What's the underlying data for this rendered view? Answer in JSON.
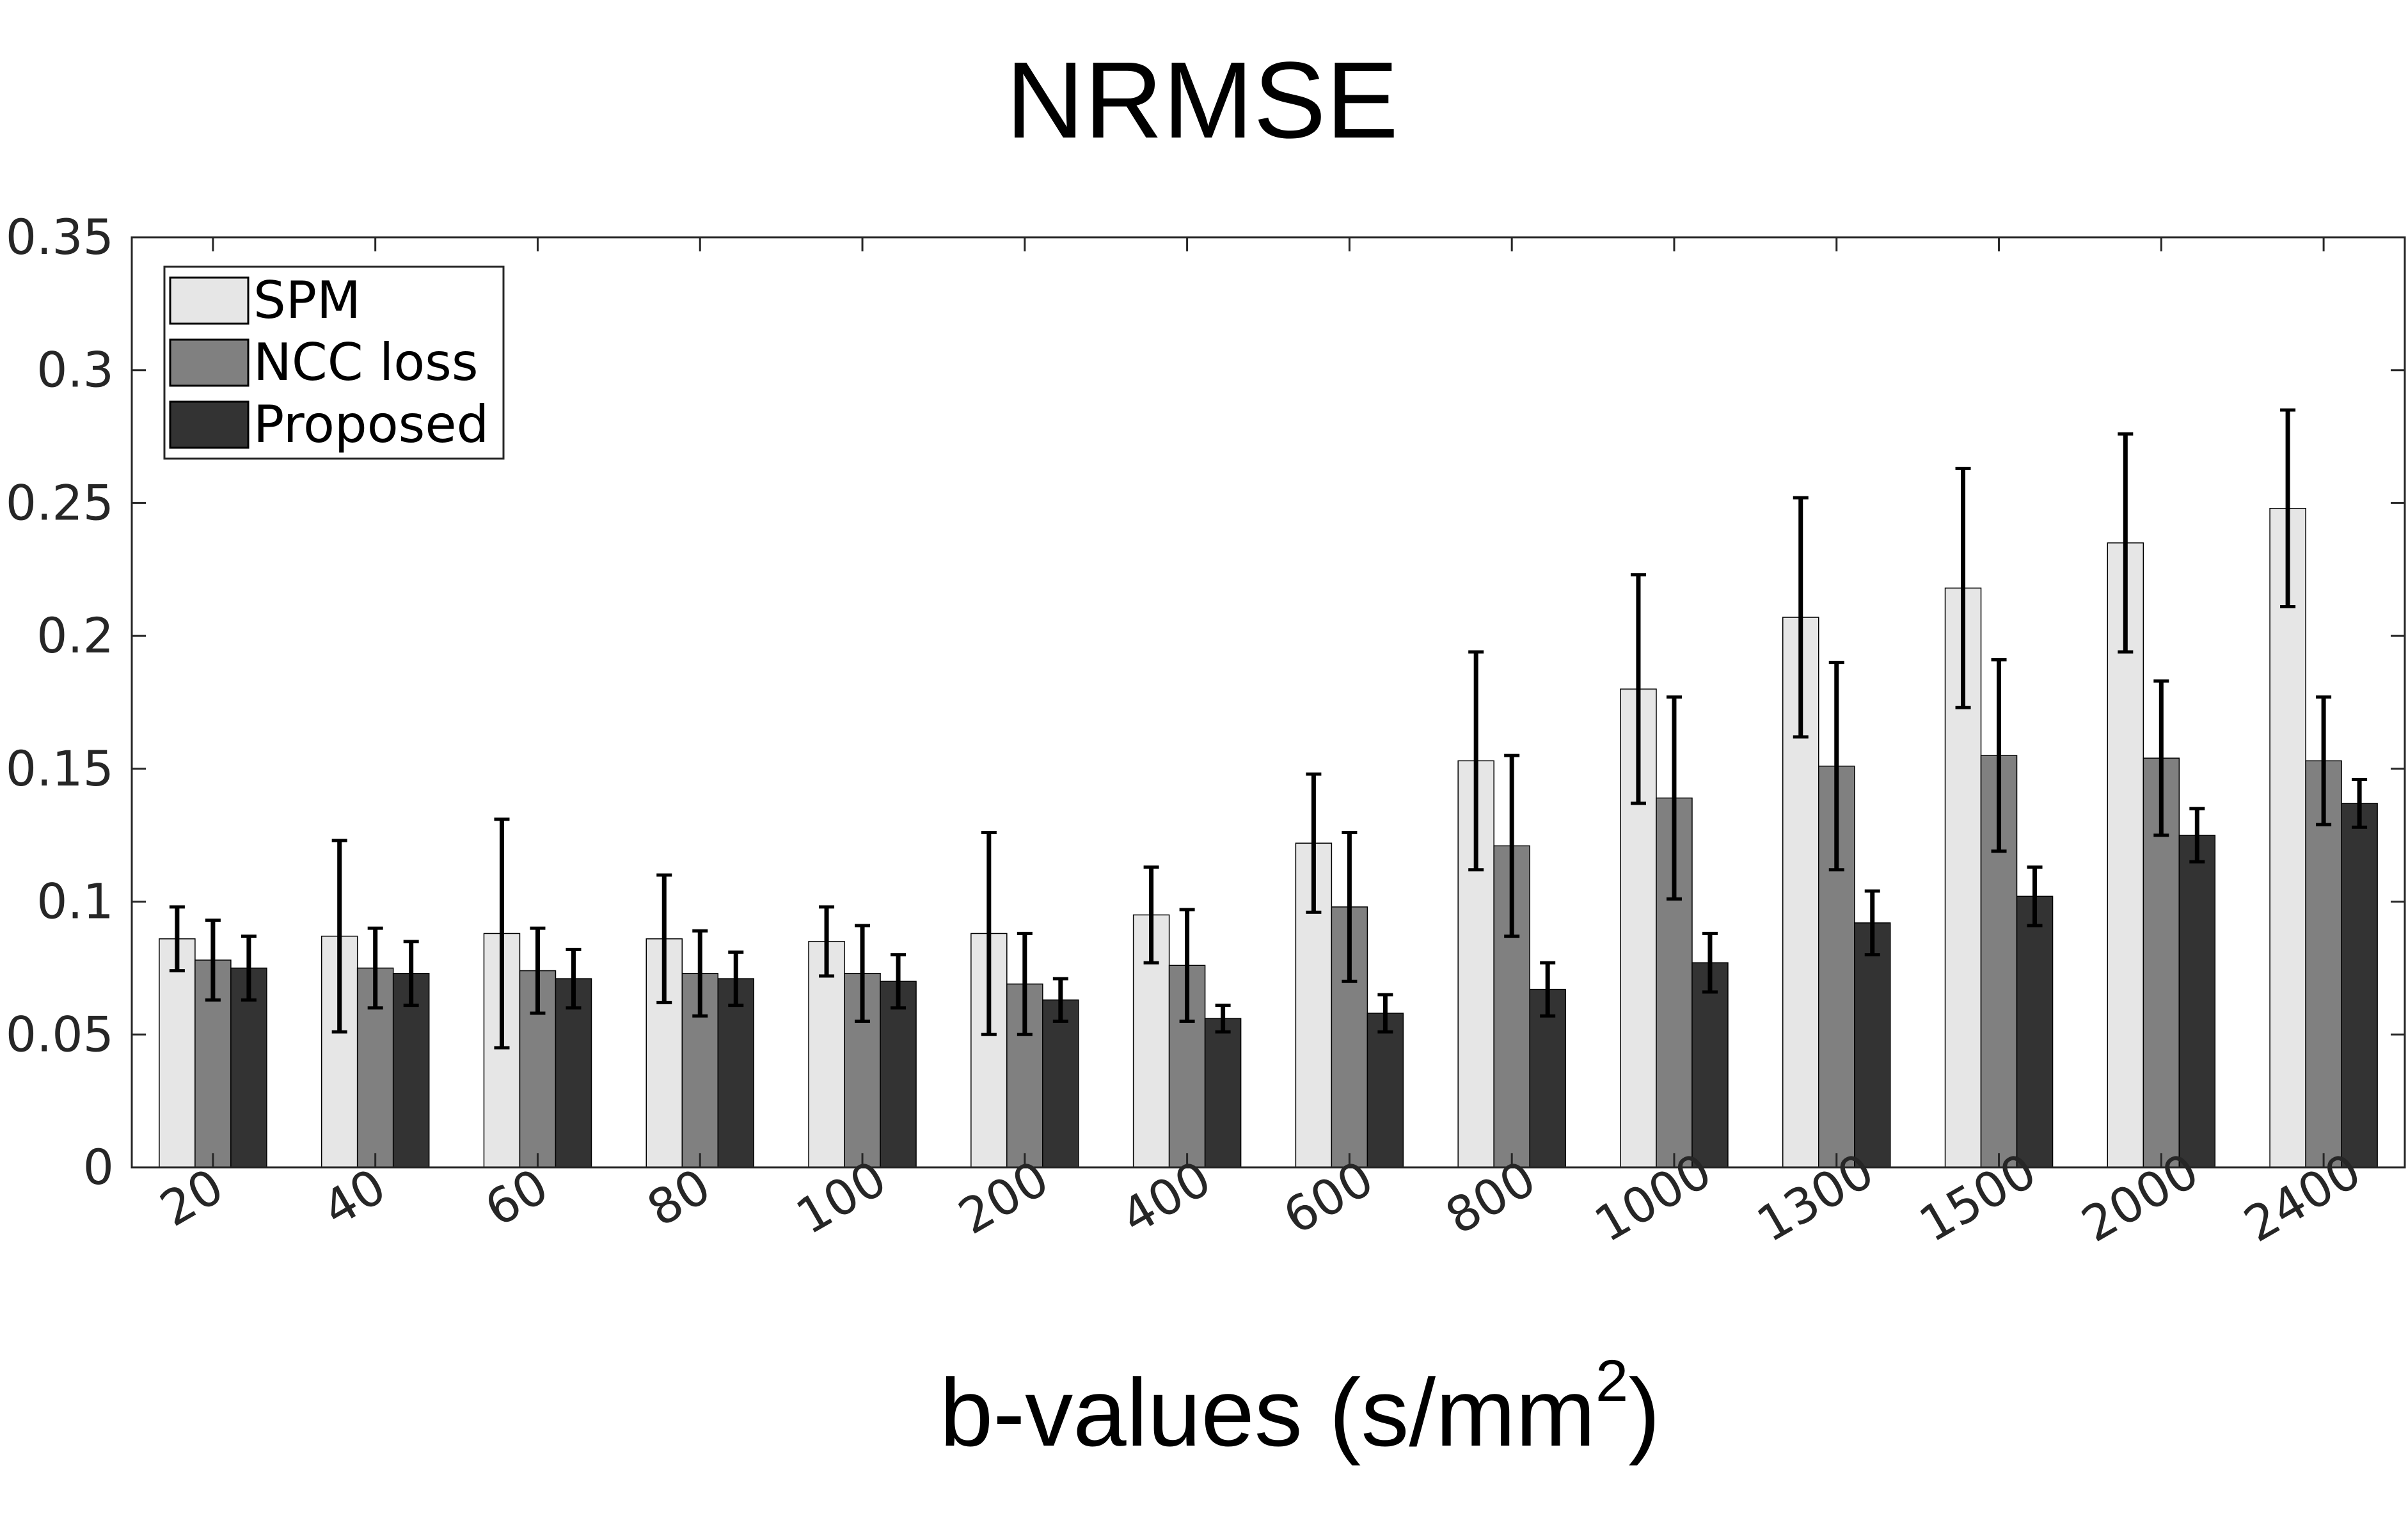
{
  "chart_data": {
    "type": "bar",
    "title": "NRMSE",
    "xlabel": "b-values (s/mm",
    "xlabel_superscript": "2",
    "xlabel_suffix": ")",
    "ylabel": "",
    "ylim": [
      0,
      0.35
    ],
    "yticks": [
      0,
      0.05,
      0.1,
      0.15,
      0.2,
      0.25,
      0.3,
      0.35
    ],
    "ytick_labels": [
      "0",
      "0.05",
      "0.1",
      "0.15",
      "0.2",
      "0.25",
      "0.3",
      "0.35"
    ],
    "categories": [
      "20",
      "40",
      "60",
      "80",
      "100",
      "200",
      "400",
      "600",
      "800",
      "1000",
      "1300",
      "1500",
      "2000",
      "2400"
    ],
    "legend_position": "top-left",
    "grid": false,
    "series": [
      {
        "name": "SPM",
        "color": "#e6e6e6",
        "values": [
          0.086,
          0.087,
          0.088,
          0.086,
          0.085,
          0.088,
          0.095,
          0.122,
          0.153,
          0.18,
          0.207,
          0.218,
          0.235,
          0.248
        ],
        "errors": [
          0.012,
          0.036,
          0.043,
          0.024,
          0.013,
          0.038,
          0.018,
          0.026,
          0.041,
          0.043,
          0.045,
          0.045,
          0.041,
          0.037
        ]
      },
      {
        "name": "NCC loss",
        "color": "#808080",
        "values": [
          0.078,
          0.075,
          0.074,
          0.073,
          0.073,
          0.069,
          0.076,
          0.098,
          0.121,
          0.139,
          0.151,
          0.155,
          0.154,
          0.153
        ],
        "errors": [
          0.015,
          0.015,
          0.016,
          0.016,
          0.018,
          0.019,
          0.021,
          0.028,
          0.034,
          0.038,
          0.039,
          0.036,
          0.029,
          0.024
        ]
      },
      {
        "name": "Proposed",
        "color": "#333333",
        "values": [
          0.075,
          0.073,
          0.071,
          0.071,
          0.07,
          0.063,
          0.056,
          0.058,
          0.067,
          0.077,
          0.092,
          0.102,
          0.125,
          0.137
        ],
        "errors": [
          0.012,
          0.012,
          0.011,
          0.01,
          0.01,
          0.008,
          0.005,
          0.007,
          0.01,
          0.011,
          0.012,
          0.011,
          0.01,
          0.009
        ]
      }
    ]
  }
}
